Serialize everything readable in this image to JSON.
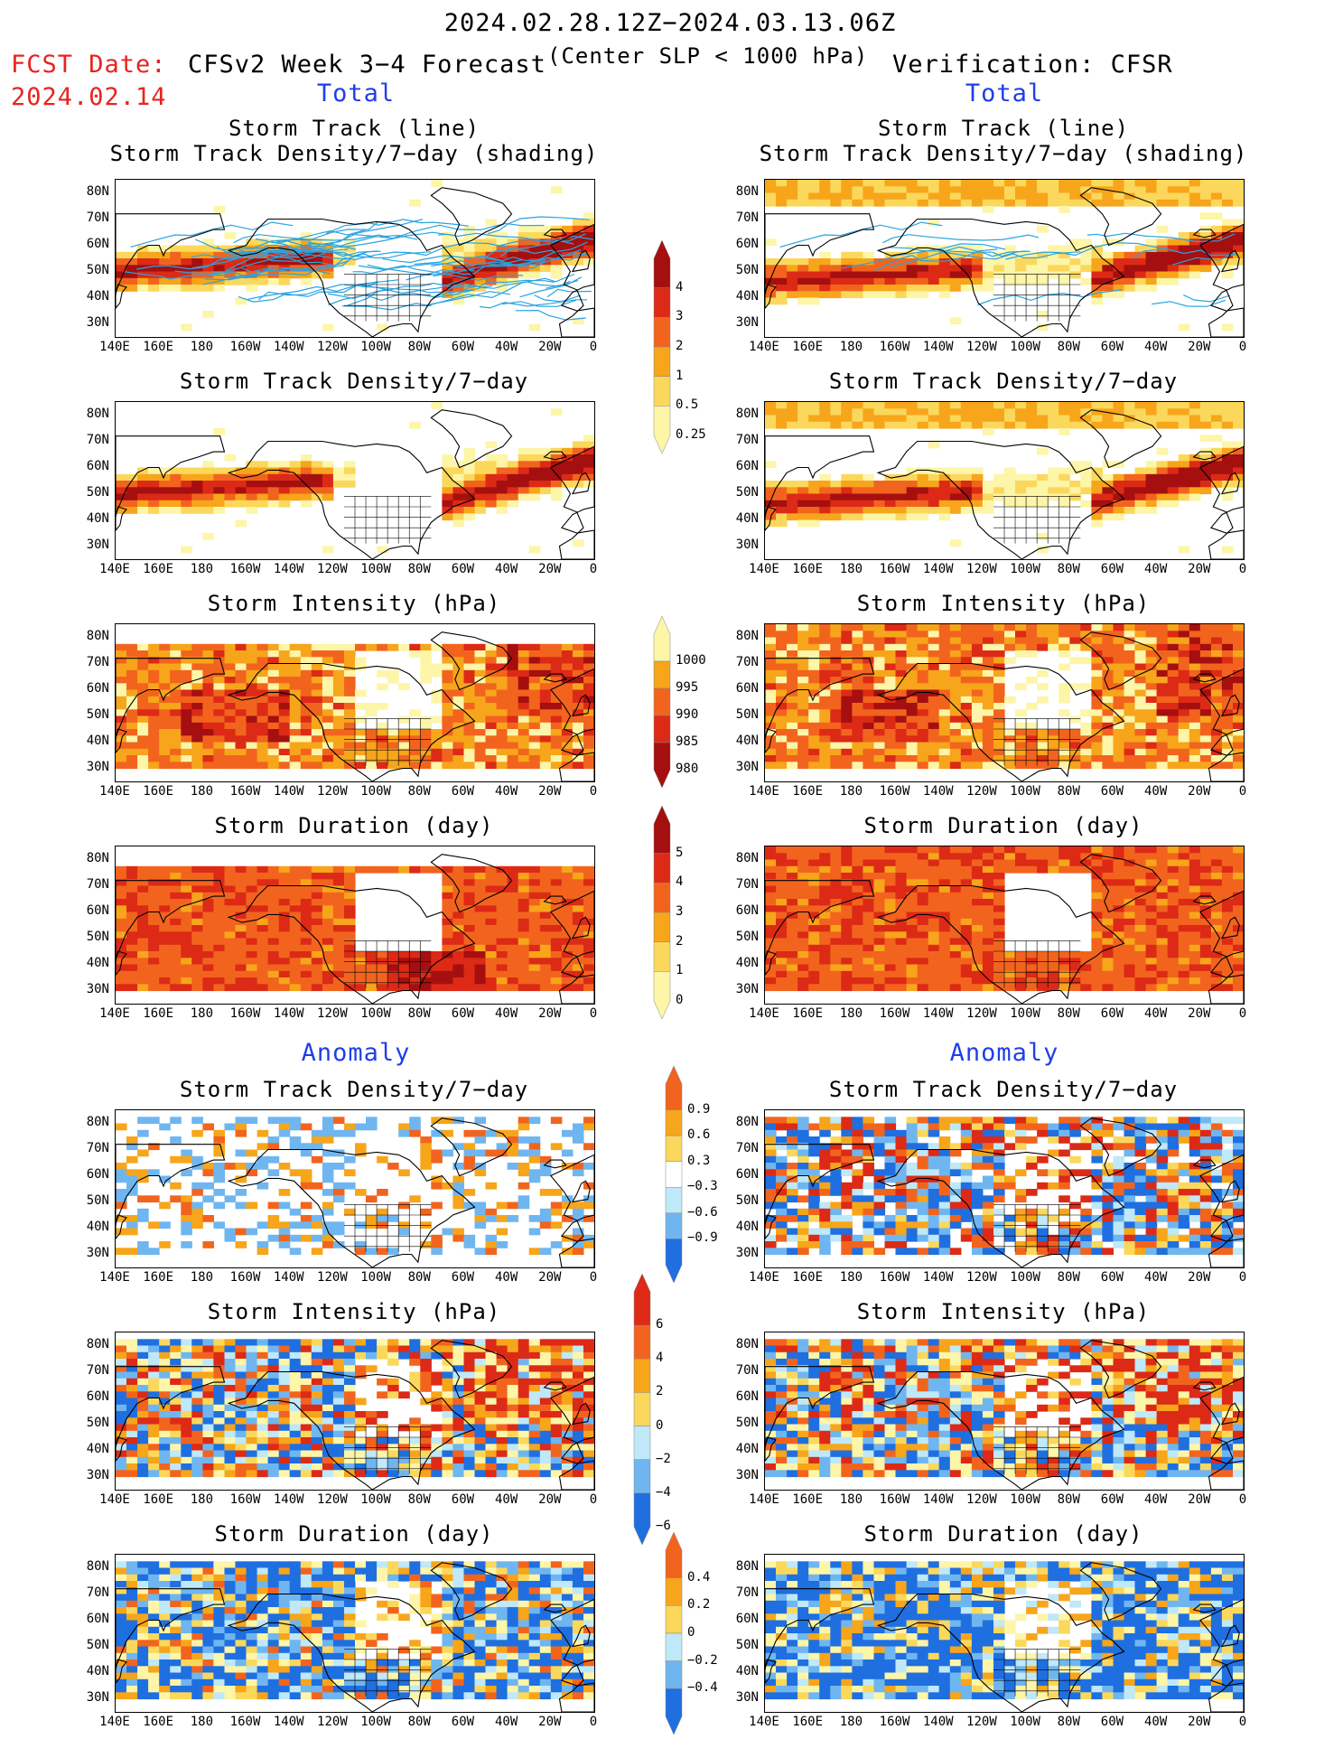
{
  "header": {
    "date_range": "2024.02.28.12Z−2024.03.13.06Z",
    "fcst_label": "FCST Date:",
    "fcst_date": "2024.02.14",
    "model_title": "CFSv2 Week 3−4 Forecast",
    "criteria": "(Center SLP < 1000 hPa)",
    "verification": "Verification: CFSR",
    "left_total": "Total",
    "right_total": "Total",
    "left_anomaly": "Anomaly",
    "right_anomaly": "Anomaly"
  },
  "axes": {
    "lat_labels": [
      "80N",
      "70N",
      "60N",
      "50N",
      "40N",
      "30N"
    ],
    "lon_labels": [
      "140E",
      "160E",
      "180",
      "160W",
      "140W",
      "120W",
      "100W",
      "80W",
      "60W",
      "40W",
      "20W",
      "0"
    ]
  },
  "panels": [
    {
      "id": "L1",
      "title1": "Storm Track (line)",
      "title2": "Storm Track Density/7−day (shading)",
      "field": "density",
      "tracks": true,
      "variant": "fcst"
    },
    {
      "id": "R1",
      "title1": "Storm Track (line)",
      "title2": "Storm Track Density/7−day (shading)",
      "field": "density",
      "tracks": true,
      "variant": "obs"
    },
    {
      "id": "L2",
      "title1": "Storm Track Density/7−day",
      "field": "density",
      "variant": "fcst"
    },
    {
      "id": "R2",
      "title1": "Storm Track Density/7−day",
      "field": "density",
      "variant": "obs"
    },
    {
      "id": "L3",
      "title1": "Storm Intensity (hPa)",
      "field": "intensity",
      "variant": "fcst"
    },
    {
      "id": "R3",
      "title1": "Storm Intensity (hPa)",
      "field": "intensity",
      "variant": "obs"
    },
    {
      "id": "L4",
      "title1": "Storm Duration (day)",
      "field": "duration",
      "variant": "fcst"
    },
    {
      "id": "R4",
      "title1": "Storm Duration (day)",
      "field": "duration",
      "variant": "obs"
    },
    {
      "id": "L5",
      "title1": "Storm Track Density/7−day",
      "field": "anom_density",
      "variant": "fcst"
    },
    {
      "id": "R5",
      "title1": "Storm Track Density/7−day",
      "field": "anom_density",
      "variant": "obs"
    },
    {
      "id": "L6",
      "title1": "Storm Intensity (hPa)",
      "field": "anom_intensity",
      "variant": "fcst"
    },
    {
      "id": "R6",
      "title1": "Storm Intensity (hPa)",
      "field": "anom_intensity",
      "variant": "obs"
    },
    {
      "id": "L7",
      "title1": "Storm Duration (day)",
      "field": "anom_duration",
      "variant": "fcst"
    },
    {
      "id": "R7",
      "title1": "Storm Duration (day)",
      "field": "anom_duration",
      "variant": "obs"
    }
  ],
  "colorbars": [
    {
      "id": "cb_density",
      "labels": [
        "4",
        "3",
        "2",
        "1",
        "0.5",
        "0.25"
      ],
      "colors": [
        "#a50f0f",
        "#dc2a16",
        "#f2641e",
        "#f7a51a",
        "#fbd85b",
        "#fdf5a8"
      ]
    },
    {
      "id": "cb_intensity",
      "labels": [
        "1000",
        "995",
        "990",
        "985",
        "980"
      ],
      "colors": [
        "#fdf5a8",
        "#f7a51a",
        "#f2641e",
        "#dc2a16",
        "#a50f0f"
      ]
    },
    {
      "id": "cb_duration",
      "labels": [
        "5",
        "4",
        "3",
        "2",
        "1",
        "0"
      ],
      "colors": [
        "#a50f0f",
        "#dc2a16",
        "#f2641e",
        "#f7a51a",
        "#fbd85b",
        "#fdf5a8"
      ]
    },
    {
      "id": "cb_anom_density",
      "labels": [
        "0.9",
        "0.6",
        "0.3",
        "−0.3",
        "−0.6",
        "−0.9"
      ],
      "colors": [
        "#f2641e",
        "#f7a51a",
        "#fbd85b",
        "#ffffff",
        "#bfe8f8",
        "#6fb6f0",
        "#1f6fe0"
      ]
    },
    {
      "id": "cb_anom_intensity",
      "labels": [
        "6",
        "4",
        "2",
        "0",
        "−2",
        "−4",
        "−6"
      ],
      "colors": [
        "#dc2a16",
        "#f2641e",
        "#f7a51a",
        "#fbd85b",
        "#bfe8f8",
        "#6fb6f0",
        "#1f6fe0"
      ]
    },
    {
      "id": "cb_anom_duration",
      "labels": [
        "0.4",
        "0.2",
        "0",
        "−0.2",
        "−0.4"
      ],
      "colors": [
        "#f2641e",
        "#f7a51a",
        "#fbd85b",
        "#bfe8f8",
        "#6fb6f0",
        "#1f6fe0"
      ]
    }
  ]
}
